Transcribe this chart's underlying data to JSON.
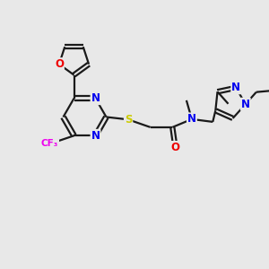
{
  "background_color": "#e8e8e8",
  "bond_color": "#1a1a1a",
  "bond_width": 1.6,
  "atom_colors": {
    "N": "#0000ee",
    "O": "#ee0000",
    "S": "#cccc00",
    "F": "#ee00ee",
    "C": "#1a1a1a"
  },
  "font_size_atom": 8.5,
  "font_size_small": 7.0
}
